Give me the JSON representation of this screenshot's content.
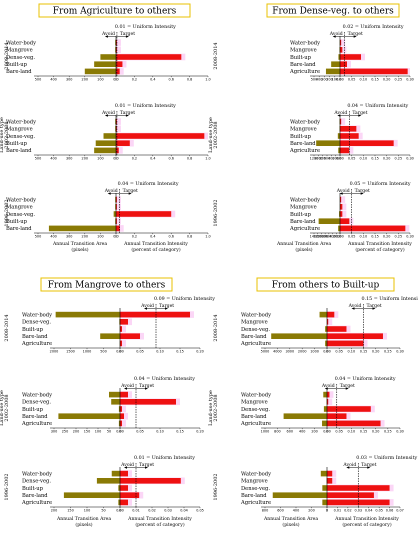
{
  "colors": {
    "area": "#8a7a05",
    "intensity": "#ee1111",
    "band": "#f7b5ee",
    "box": "#e8c200"
  },
  "labels": {
    "land_use_type": "Land-use type",
    "avoid": "Avoid",
    "target": "Target",
    "uniform_suffix": " = Uniform Intensity",
    "area_axis": [
      "Annual Transition Area",
      "(pixels)"
    ],
    "intensity_axis": [
      "Annual Transition Intensity",
      "(percent of category)"
    ]
  },
  "chart_data": [
    {
      "type": "bar",
      "title": "From Agriculture to others",
      "categories": [
        "Water-body",
        "Mangrove",
        "Dense-veg.",
        "Built-up",
        "Bare-land"
      ],
      "area_ticks": [
        500,
        400,
        300,
        200,
        100,
        0
      ],
      "intensity_ticks": [
        "0.0",
        "0.2",
        "0.4",
        "0.6",
        "0.8",
        "1.0"
      ],
      "area_max": 500,
      "intensity_max": 1.0,
      "panels": [
        {
          "period": "2008-2014",
          "uniform": 0.01,
          "uniform_text": "0.01",
          "area": [
            5,
            5,
            100,
            140,
            200
          ],
          "intensity": [
            0.01,
            0.01,
            0.71,
            0.07,
            0.04
          ]
        },
        {
          "period": "2002-2008",
          "uniform": 0.01,
          "uniform_text": "0.01",
          "area": [
            5,
            5,
            80,
            130,
            140
          ],
          "intensity": [
            0.01,
            0.01,
            0.96,
            0.15,
            0.03
          ]
        },
        {
          "period": "1996-2002",
          "uniform": 0.04,
          "uniform_text": "0.04",
          "area": [
            5,
            5,
            15,
            5,
            430
          ],
          "intensity": [
            0.01,
            0.01,
            0.6,
            0.01,
            0.04
          ]
        }
      ]
    },
    {
      "type": "bar",
      "title": "From Dense-veg. to others",
      "categories": [
        "Water-body",
        "Mangrove",
        "Built-up",
        "Bare-land",
        "Agriculture"
      ],
      "area_ticks": [
        500,
        400,
        300,
        200,
        100,
        0
      ],
      "intensity_ticks": [
        "0.00",
        "0.05",
        "0.10",
        "0.15",
        "0.20",
        "0.25",
        "0.30"
      ],
      "area_max": 500,
      "intensity_max": 0.3,
      "panels": [
        {
          "period": "2008-2014",
          "uniform": 0.02,
          "uniform_text": "0.02",
          "area": [
            5,
            10,
            30,
            170,
            270
          ],
          "intensity": [
            0.005,
            0.01,
            0.09,
            0.03,
            0.29
          ]
        },
        {
          "period": "2002-2008",
          "uniform": 0.04,
          "uniform_text": "0.04",
          "area": [
            20,
            20,
            100,
            1100,
            80
          ],
          "intensity": [
            0.005,
            0.07,
            0.08,
            0.23,
            0.04
          ]
        },
        {
          "period": "1996-2002",
          "uniform": 0.05,
          "uniform_text": "0.05",
          "area": [
            5,
            5,
            50,
            1150,
            100
          ],
          "intensity": [
            0.005,
            0.01,
            0.01,
            0.04,
            0.28
          ]
        }
      ],
      "panel_area_max": [
        500,
        1200,
        1400
      ],
      "panel_area_ticks": [
        [
          500,
          400,
          300,
          200,
          100,
          0
        ],
        [
          1200,
          1000,
          800,
          600,
          400,
          200,
          0
        ],
        [
          1400,
          1200,
          1000,
          800,
          600,
          400,
          200,
          0
        ]
      ]
    },
    {
      "type": "bar",
      "title": "From Mangrove to others",
      "categories": [
        "Water-body",
        "Dense-veg.",
        "Built-up",
        "Bare-land",
        "Agriculture"
      ],
      "intensity_ticks": [
        "0.00",
        "0.05",
        "0.10",
        "0.15",
        "0.20"
      ],
      "intensity_max": 0.2,
      "panels": [
        {
          "period": "2008-2014",
          "uniform": 0.09,
          "uniform_text": "0.09",
          "area": [
            1950,
            20,
            5,
            600,
            5
          ],
          "intensity": [
            0.175,
            0.02,
            0.005,
            0.05,
            0.005
          ]
        },
        {
          "period": "2002-2008",
          "uniform": 0.04,
          "uniform_text": "0.04",
          "area": [
            50,
            40,
            5,
            280,
            5
          ],
          "intensity": [
            0.02,
            0.14,
            0.005,
            0.01,
            0.005
          ]
        },
        {
          "period": "1996-2002",
          "uniform": 0.01,
          "uniform_text": "0.01",
          "area": [
            25,
            70,
            5,
            170,
            5
          ],
          "intensity": [
            0.005,
            0.038,
            0.005,
            0.012,
            0.005
          ]
        }
      ],
      "panel_area_max": [
        2000,
        300,
        200
      ],
      "panel_area_ticks": [
        [
          2000,
          1500,
          1000,
          500,
          0
        ],
        [
          300,
          250,
          200,
          150,
          100,
          50,
          0
        ],
        [
          200,
          150,
          100,
          50,
          0
        ]
      ],
      "panel_intensity_max": [
        0.2,
        0.2,
        0.05
      ],
      "panel_intensity_ticks": [
        [
          "0.00",
          "0.05",
          "0.10",
          "0.15",
          "0.20"
        ],
        [
          "0.00",
          "0.05",
          "0.10",
          "0.15",
          "0.20"
        ],
        [
          "0.00",
          "0.01",
          "0.02",
          "0.03",
          "0.04",
          "0.05"
        ]
      ]
    },
    {
      "type": "bar",
      "title": "From others to Built-up",
      "categories": [
        "Water-body",
        "Mangrove",
        "Dense-veg.",
        "Bare-land",
        "Agriculture"
      ],
      "panels": [
        {
          "period": "2008-2014",
          "uniform": 0.15,
          "uniform_text": "0.15",
          "area": [
            600,
            5,
            150,
            4500,
            150
          ],
          "intensity": [
            0.03,
            0.005,
            0.08,
            0.23,
            0.15
          ]
        },
        {
          "period": "2002-2008",
          "uniform": 0.04,
          "uniform_text": "0.04",
          "area": [
            60,
            5,
            50,
            700,
            80
          ],
          "intensity": [
            0.01,
            0.005,
            0.18,
            0.08,
            0.22
          ]
        },
        {
          "period": "1996-2002",
          "uniform": 0.03,
          "uniform_text": "0.03",
          "area": [
            80,
            5,
            60,
            700,
            60
          ],
          "intensity": [
            0.005,
            0.005,
            0.06,
            0.045,
            0.06
          ]
        }
      ],
      "panel_area_max": [
        5000,
        1000,
        800
      ],
      "panel_area_ticks": [
        [
          5000,
          4000,
          3000,
          2000,
          1000,
          0
        ],
        [
          1000,
          800,
          600,
          400,
          200,
          0
        ],
        [
          800,
          600,
          400,
          200,
          0
        ]
      ],
      "panel_intensity_max": [
        0.3,
        0.3,
        0.07
      ],
      "panel_intensity_ticks": [
        [
          "0.00",
          "0.05",
          "0.10",
          "0.15",
          "0.20",
          "0.25",
          "0.30"
        ],
        [
          "0.00",
          "0.05",
          "0.10",
          "0.15",
          "0.20",
          "0.25",
          "0.30"
        ],
        [
          "0",
          "0.01",
          "0.02",
          "0.03",
          "0.04",
          "0.05",
          "0.06",
          "0.07"
        ]
      ]
    }
  ]
}
